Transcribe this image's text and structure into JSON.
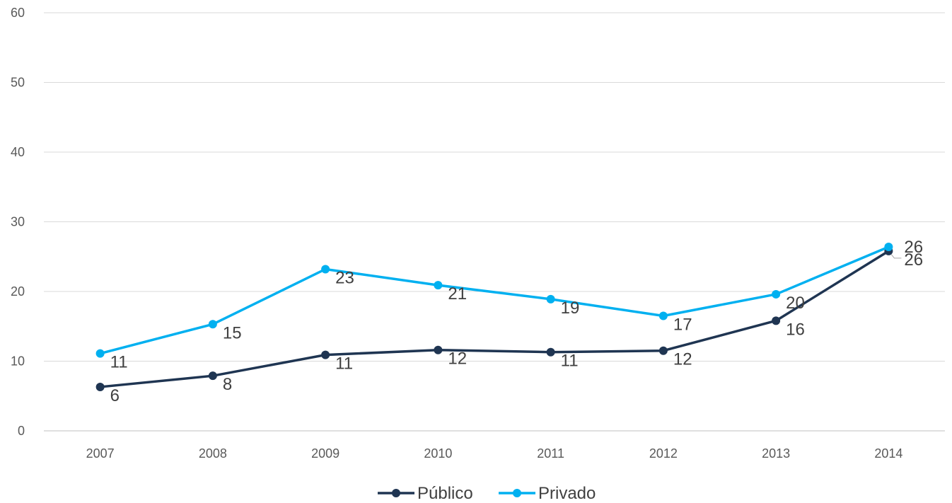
{
  "chart_data": {
    "type": "line",
    "x": [
      "2007",
      "2008",
      "2009",
      "2010",
      "2011",
      "2012",
      "2013",
      "2014"
    ],
    "series": [
      {
        "name": "Público",
        "color": "#1f3552",
        "values": [
          6.3,
          7.9,
          10.9,
          11.6,
          11.3,
          11.5,
          15.8,
          25.8
        ],
        "labels": [
          "6",
          "8",
          "11",
          "12",
          "11",
          "12",
          "16",
          "26"
        ]
      },
      {
        "name": "Privado",
        "color": "#00b0f0",
        "values": [
          11.1,
          15.3,
          23.2,
          20.9,
          18.9,
          16.5,
          19.6,
          26.4
        ],
        "labels": [
          "11",
          "15",
          "23",
          "21",
          "19",
          "17",
          "20",
          "26"
        ]
      }
    ],
    "yticks": [
      "0",
      "10",
      "20",
      "30",
      "40",
      "50",
      "60"
    ],
    "ylim": [
      0,
      60
    ],
    "grid": true,
    "legend_position": "bottom",
    "title": "",
    "xlabel": "",
    "ylabel": ""
  }
}
